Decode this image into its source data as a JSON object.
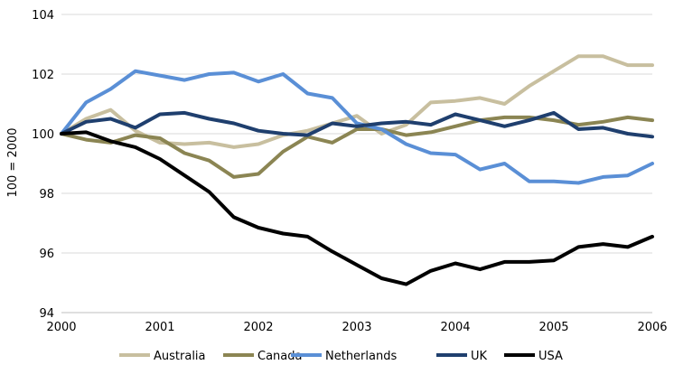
{
  "chart_data": {
    "type": "line",
    "title": "",
    "xlabel": "",
    "ylabel": "100 = 2000",
    "xlim": [
      2000,
      2006
    ],
    "ylim": [
      94,
      104
    ],
    "grid": "horizontal",
    "legend": "bottom",
    "xticks": [
      "2000",
      "2001",
      "2002",
      "2003",
      "2004",
      "2005",
      "2006"
    ],
    "yticks": [
      "94",
      "96",
      "98",
      "100",
      "102",
      "104"
    ],
    "x": [
      2000.0,
      2000.25,
      2000.5,
      2000.75,
      2001.0,
      2001.25,
      2001.5,
      2001.75,
      2002.0,
      2002.25,
      2002.5,
      2002.75,
      2003.0,
      2003.25,
      2003.5,
      2003.75,
      2004.0,
      2004.25,
      2004.5,
      2004.75,
      2005.0,
      2005.25,
      2005.5,
      2005.75,
      2006.0
    ],
    "series": [
      {
        "name": "Australia",
        "color": "#c8bf9f",
        "values": [
          100.0,
          100.5,
          100.8,
          100.1,
          99.7,
          99.65,
          99.7,
          99.55,
          99.65,
          99.95,
          100.1,
          100.35,
          100.6,
          100.0,
          100.3,
          101.05,
          101.1,
          101.2,
          101.0,
          101.6,
          102.1,
          102.6,
          102.6,
          102.3,
          102.3
        ]
      },
      {
        "name": "Canada",
        "color": "#8b8553",
        "values": [
          100.0,
          99.8,
          99.7,
          99.95,
          99.85,
          99.35,
          99.1,
          98.55,
          98.65,
          99.4,
          99.9,
          99.7,
          100.15,
          100.15,
          99.95,
          100.05,
          100.25,
          100.45,
          100.55,
          100.55,
          100.45,
          100.3,
          100.4,
          100.55,
          100.45
        ]
      },
      {
        "name": "Netherlands",
        "color": "#5a8fd6",
        "values": [
          100.0,
          101.05,
          101.5,
          102.1,
          101.95,
          101.8,
          102.0,
          102.05,
          101.75,
          102.0,
          101.35,
          101.2,
          100.35,
          100.15,
          99.65,
          99.35,
          99.3,
          98.8,
          99.0,
          98.4,
          98.4,
          98.35,
          98.55,
          98.6,
          99.0
        ]
      },
      {
        "name": "UK",
        "color": "#1f3f6e",
        "values": [
          100.0,
          100.4,
          100.5,
          100.2,
          100.65,
          100.7,
          100.5,
          100.35,
          100.1,
          100.0,
          99.95,
          100.35,
          100.25,
          100.35,
          100.4,
          100.3,
          100.65,
          100.45,
          100.25,
          100.45,
          100.7,
          100.15,
          100.2,
          100.0,
          99.9
        ]
      },
      {
        "name": "USA",
        "color": "#000000",
        "values": [
          100.0,
          100.05,
          99.75,
          99.55,
          99.15,
          98.6,
          98.05,
          97.2,
          96.85,
          96.65,
          96.55,
          96.05,
          95.6,
          95.15,
          94.95,
          95.4,
          95.65,
          95.45,
          95.7,
          95.7,
          95.75,
          96.2,
          96.3,
          96.2,
          96.55
        ]
      }
    ]
  }
}
